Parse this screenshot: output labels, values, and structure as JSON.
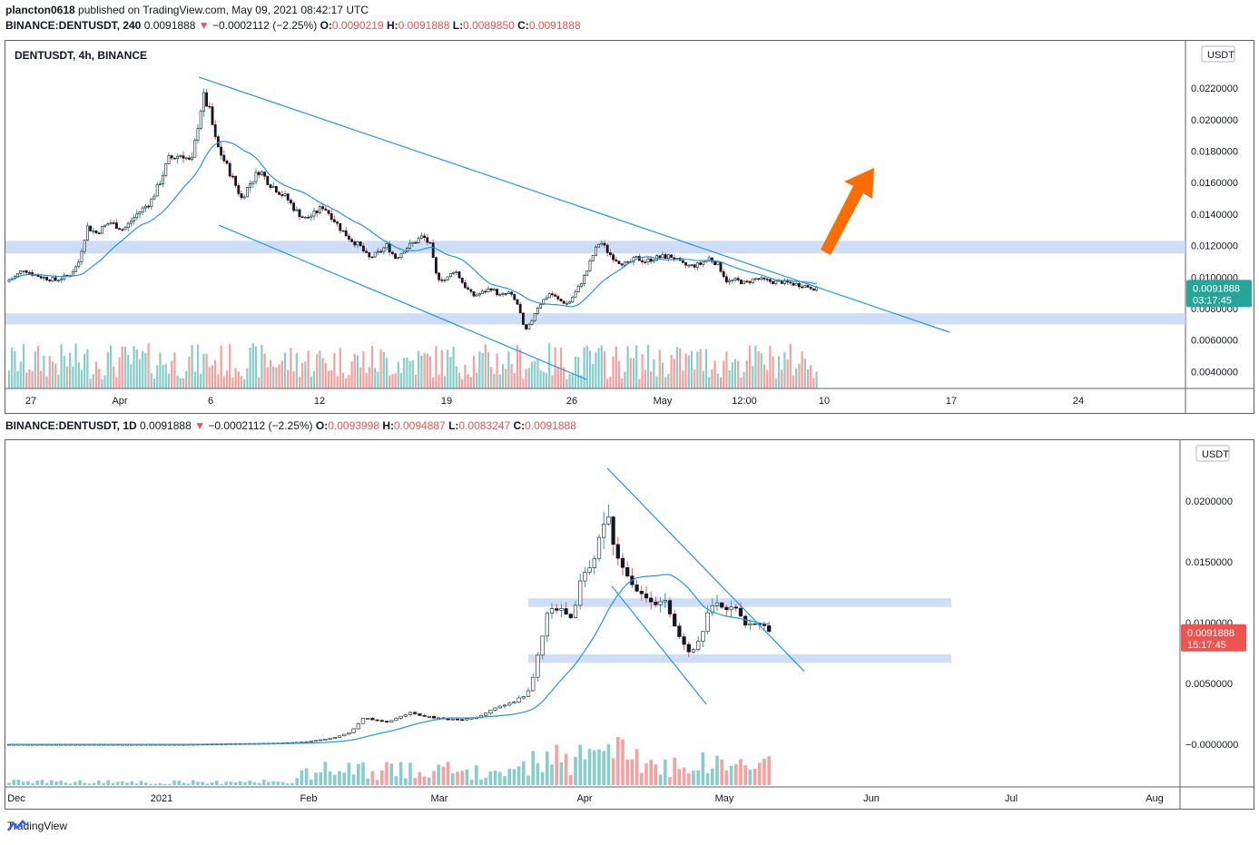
{
  "header": {
    "publisher": "plancton0618",
    "published_text": "published on TradingView.com, May 09, 2021 08:42:17 UTC"
  },
  "chart_top": {
    "symbol_line": {
      "symbol": "BINANCE:DENTUSDT, 240",
      "price": "0.0091888",
      "arrow": "▼",
      "change": "−0.0002112 (−2.25%)",
      "o_label": "O:",
      "o": "0.0090219",
      "h_label": "H:",
      "h": "0.0091888",
      "l_label": "L:",
      "l": "0.0089850",
      "c_label": "C:",
      "c": "0.0091888"
    },
    "panel_title": "DENTUSDT, 4h, BINANCE",
    "currency": "USDT",
    "last_price": "0.0091888",
    "countdown": "03:17:45"
  },
  "chart_bottom": {
    "symbol_line": {
      "symbol": "BINANCE:DENTUSDT, 1D",
      "price": "0.0091888",
      "arrow": "▼",
      "change": "−0.0002112 (−2.25%)",
      "o_label": "O:",
      "o": "0.0093998",
      "h_label": "H:",
      "h": "0.0094887",
      "l_label": "L:",
      "l": "0.0083247",
      "c_label": "C:",
      "c": "0.0091888"
    },
    "currency": "USDT",
    "last_price": "0.0091888",
    "countdown": "15:17:45"
  },
  "footer": {
    "brand": "TradingView"
  },
  "colors": {
    "up": "#26a69a",
    "down": "#ef5350",
    "ma": "#2196f3",
    "trendline": "#2196f3",
    "zone": "#c5d8f7",
    "arrow": "#ff6d00",
    "label_green": "#26a69a",
    "label_red": "#ef5350",
    "grid_text": "#131722"
  },
  "chart_data": [
    {
      "type": "candlestick",
      "title": "DENTUSDT, 4h, BINANCE",
      "x_ticks": [
        "27",
        "Apr",
        "6",
        "12",
        "19",
        "26",
        "May",
        "12:00",
        "10",
        "17",
        "24"
      ],
      "y_ticks": [
        "0.0040000",
        "0.0060000",
        "0.0080000",
        "0.0100000",
        "0.0120000",
        "0.0140000",
        "0.0160000",
        "0.0180000",
        "0.0200000",
        "0.0220000"
      ],
      "ylim": [
        0.0031,
        0.025
      ],
      "close_path": [
        [
          0,
          0.0097
        ],
        [
          10,
          0.01
        ],
        [
          20,
          0.0105
        ],
        [
          30,
          0.0102
        ],
        [
          40,
          0.01
        ],
        [
          55,
          0.0098
        ],
        [
          70,
          0.0101
        ],
        [
          80,
          0.0108
        ],
        [
          90,
          0.0132
        ],
        [
          100,
          0.0128
        ],
        [
          115,
          0.0135
        ],
        [
          130,
          0.013
        ],
        [
          145,
          0.014
        ],
        [
          160,
          0.0148
        ],
        [
          170,
          0.016
        ],
        [
          180,
          0.0175
        ],
        [
          195,
          0.0178
        ],
        [
          205,
          0.0172
        ],
        [
          213,
          0.02
        ],
        [
          218,
          0.0215
        ],
        [
          225,
          0.0205
        ],
        [
          232,
          0.0185
        ],
        [
          240,
          0.0175
        ],
        [
          250,
          0.0163
        ],
        [
          260,
          0.015
        ],
        [
          270,
          0.016
        ],
        [
          280,
          0.0168
        ],
        [
          290,
          0.016
        ],
        [
          300,
          0.0155
        ],
        [
          310,
          0.015
        ],
        [
          320,
          0.0142
        ],
        [
          330,
          0.0137
        ],
        [
          340,
          0.014
        ],
        [
          350,
          0.0145
        ],
        [
          360,
          0.0138
        ],
        [
          370,
          0.013
        ],
        [
          380,
          0.0124
        ],
        [
          390,
          0.012
        ],
        [
          400,
          0.0112
        ],
        [
          410,
          0.0115
        ],
        [
          420,
          0.012
        ],
        [
          430,
          0.0112
        ],
        [
          440,
          0.0118
        ],
        [
          450,
          0.0122
        ],
        [
          460,
          0.0126
        ],
        [
          468,
          0.012
        ],
        [
          475,
          0.01
        ],
        [
          485,
          0.0098
        ],
        [
          495,
          0.0105
        ],
        [
          505,
          0.0095
        ],
        [
          515,
          0.0088
        ],
        [
          525,
          0.009
        ],
        [
          535,
          0.0093
        ],
        [
          545,
          0.0088
        ],
        [
          555,
          0.009
        ],
        [
          565,
          0.0082
        ],
        [
          572,
          0.0065
        ],
        [
          578,
          0.007
        ],
        [
          585,
          0.008
        ],
        [
          592,
          0.0085
        ],
        [
          600,
          0.009
        ],
        [
          610,
          0.0085
        ],
        [
          620,
          0.0083
        ],
        [
          630,
          0.0092
        ],
        [
          640,
          0.0103
        ],
        [
          648,
          0.0115
        ],
        [
          655,
          0.0123
        ],
        [
          665,
          0.0115
        ],
        [
          675,
          0.011
        ],
        [
          685,
          0.0108
        ],
        [
          695,
          0.0112
        ],
        [
          705,
          0.011
        ],
        [
          715,
          0.0112
        ],
        [
          725,
          0.0113
        ],
        [
          735,
          0.0113
        ],
        [
          745,
          0.0108
        ],
        [
          755,
          0.0107
        ],
        [
          765,
          0.0108
        ],
        [
          775,
          0.0112
        ],
        [
          785,
          0.0108
        ],
        [
          795,
          0.0097
        ],
        [
          805,
          0.0098
        ],
        [
          815,
          0.0096
        ],
        [
          825,
          0.0099
        ],
        [
          835,
          0.0098
        ],
        [
          845,
          0.0097
        ],
        [
          855,
          0.0097
        ],
        [
          865,
          0.0096
        ],
        [
          875,
          0.0095
        ],
        [
          885,
          0.0094
        ],
        [
          895,
          0.0092
        ]
      ],
      "support_resistance_zones": [
        [
          0.0115,
          0.0123
        ],
        [
          0.007,
          0.0077
        ]
      ],
      "trendlines": [
        {
          "from": [
            213,
            0.0227
          ],
          "to": [
            1040,
            0.0065
          ]
        },
        {
          "from": [
            235,
            0.0133
          ],
          "to": [
            640,
            0.0035
          ]
        }
      ],
      "grid": false
    },
    {
      "type": "candlestick",
      "title": "BINANCE:DENTUSDT, 1D",
      "x_ticks": [
        "Dec",
        "2021",
        "Feb",
        "Mar",
        "Apr",
        "May",
        "Jun",
        "Jul",
        "Aug"
      ],
      "y_ticks": [
        "−0.0000000",
        "0.0050000",
        "0.0100000",
        "0.0150000",
        "0.0200000"
      ],
      "ylim": [
        -0.0035,
        0.025
      ],
      "close_path": [
        [
          0,
          0.0
        ],
        [
          100,
          0.0
        ],
        [
          200,
          0.0
        ],
        [
          300,
          0.0001
        ],
        [
          330,
          0.0002
        ],
        [
          360,
          0.0005
        ],
        [
          380,
          0.001
        ],
        [
          395,
          0.0022
        ],
        [
          420,
          0.0018
        ],
        [
          445,
          0.0026
        ],
        [
          470,
          0.0022
        ],
        [
          500,
          0.002
        ],
        [
          520,
          0.0022
        ],
        [
          540,
          0.003
        ],
        [
          560,
          0.0035
        ],
        [
          575,
          0.0042
        ],
        [
          583,
          0.006
        ],
        [
          590,
          0.0085
        ],
        [
          598,
          0.011
        ],
        [
          610,
          0.0112
        ],
        [
          625,
          0.0105
        ],
        [
          632,
          0.013
        ],
        [
          640,
          0.0145
        ],
        [
          648,
          0.015
        ],
        [
          655,
          0.017
        ],
        [
          662,
          0.0193
        ],
        [
          668,
          0.017
        ],
        [
          675,
          0.015
        ],
        [
          685,
          0.014
        ],
        [
          695,
          0.0128
        ],
        [
          705,
          0.0122
        ],
        [
          715,
          0.0115
        ],
        [
          725,
          0.012
        ],
        [
          735,
          0.01
        ],
        [
          745,
          0.0085
        ],
        [
          755,
          0.0075
        ],
        [
          765,
          0.0085
        ],
        [
          775,
          0.011
        ],
        [
          785,
          0.0115
        ],
        [
          795,
          0.0112
        ],
        [
          805,
          0.0113
        ],
        [
          815,
          0.01
        ],
        [
          825,
          0.0098
        ],
        [
          835,
          0.0097
        ],
        [
          842,
          0.0092
        ]
      ],
      "support_resistance_zones": [
        [
          0.0113,
          0.012
        ],
        [
          0.0067,
          0.0074
        ]
      ],
      "trendlines": [
        {
          "from": [
            663,
            0.0227
          ],
          "to": [
            880,
            0.006
          ]
        },
        {
          "from": [
            668,
            0.013
          ],
          "to": [
            772,
            0.0033
          ]
        }
      ],
      "grid": false
    }
  ]
}
